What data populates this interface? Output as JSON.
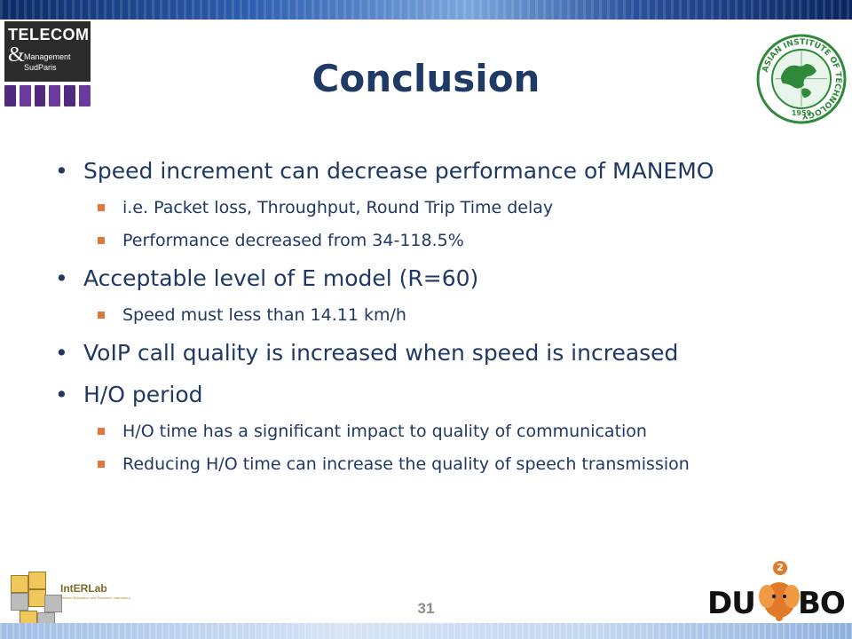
{
  "slide": {
    "title": "Conclusion",
    "page_number": "31"
  },
  "logos": {
    "telecom": {
      "line1": "TELECOM",
      "amp": "&",
      "line2": "Management",
      "line3": "SudParis"
    },
    "ait": {
      "ring_text": "ASIAN INSTITUTE OF TECHNOLOGY",
      "year": "1959"
    },
    "interlab": {
      "name": "IntERLab",
      "tagline": "Internet Education and Research Laboratory"
    },
    "dumbo": {
      "left_text": "DU",
      "right_text": "BO",
      "badge": "2"
    }
  },
  "bullets": [
    {
      "text": "Speed increment can decrease performance of MANEMO",
      "sub": [
        "i.e. Packet loss, Throughput, Round Trip Time delay",
        "Performance decreased from  34-118.5%"
      ]
    },
    {
      "text": "Acceptable level of E model (R=60)",
      "sub": [
        "Speed must less than 14.11 km/h"
      ]
    },
    {
      "text": "VoIP call quality is increased when speed is increased",
      "sub": []
    },
    {
      "text": "H/O period",
      "sub": [
        "H/O time has a significant impact to quality of communication",
        "Reducing H/O time can increase the quality of speech transmission"
      ]
    }
  ],
  "colors": {
    "title": "#1f3a64",
    "body_text": "#1f3864",
    "sub_bullet": "#e0783a",
    "page_number": "#8c8c8c"
  }
}
